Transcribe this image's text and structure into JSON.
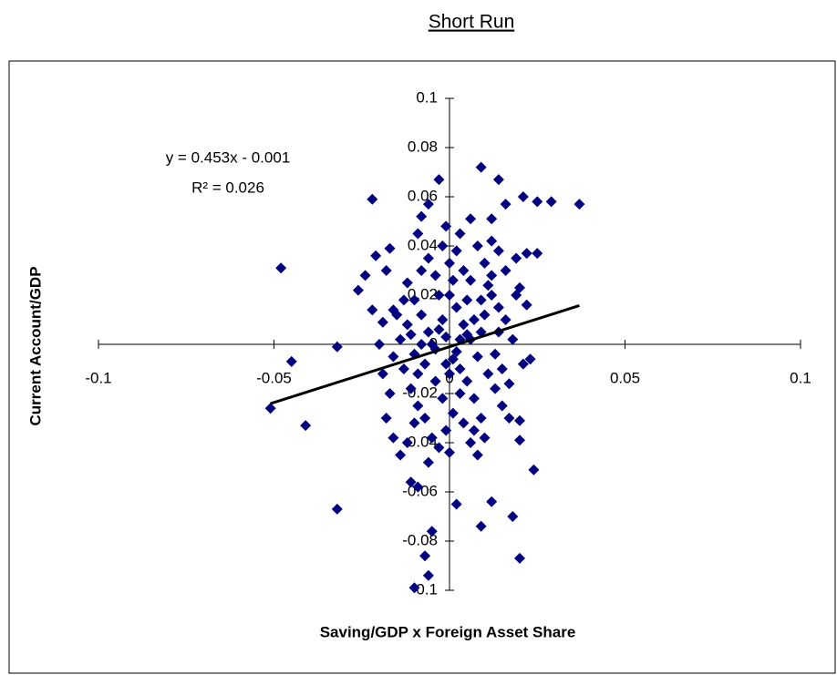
{
  "chart_data": {
    "type": "scatter",
    "title": "Short Run",
    "x_label": "Saving/GDP x Foreign Asset Share",
    "y_label": "Current Account/GDP",
    "annotations": [
      "y = 0.453x - 0.001",
      "R² = 0.026"
    ],
    "trendline": {
      "slope": 0.453,
      "intercept": -0.001,
      "x_range": [
        -0.051,
        0.037
      ]
    },
    "color": "#000080",
    "trendline_color": "#000000",
    "xlim": [
      -0.1,
      0.1
    ],
    "ylim": [
      -0.1,
      0.1
    ],
    "xticks": [
      -0.1,
      -0.05,
      0,
      0.05,
      0.1
    ],
    "yticks": [
      -0.1,
      -0.08,
      -0.06,
      -0.04,
      -0.02,
      0,
      0.02,
      0.04,
      0.06,
      0.08,
      0.1
    ],
    "x": [
      -0.048,
      -0.045,
      -0.051,
      -0.041,
      -0.032,
      -0.032,
      -0.022,
      -0.021,
      -0.026,
      -0.024,
      -0.017,
      -0.018,
      -0.016,
      -0.019,
      -0.022,
      0.009,
      0.014,
      0.021,
      0.025,
      0.029,
      0.037,
      0.012,
      0.006,
      0.016,
      -0.003,
      -0.006,
      -0.008,
      0.025,
      0.022,
      0.019,
      0.014,
      0.02,
      0.022,
      0.023,
      0.021,
      0.024,
      0.02,
      0.018,
      0.02,
      0.012,
      0.009,
      0.002,
      -0.005,
      -0.007,
      -0.006,
      -0.01,
      -0.011,
      -0.009,
      -0.012,
      -0.01,
      -0.008,
      -0.006,
      -0.004,
      -0.002,
      0.0,
      0.002,
      0.004,
      0.006,
      0.008,
      0.01,
      0.012,
      0.014,
      -0.013,
      -0.011,
      -0.009,
      -0.007,
      -0.005,
      -0.003,
      -0.001,
      0.001,
      0.003,
      0.005,
      0.007,
      0.009,
      0.011,
      0.013,
      0.015,
      -0.014,
      -0.012,
      -0.01,
      -0.008,
      -0.006,
      -0.004,
      -0.002,
      0.0,
      0.002,
      0.004,
      0.006,
      0.008,
      0.01,
      0.012,
      0.014,
      0.016,
      0.018,
      -0.016,
      -0.015,
      -0.013,
      -0.011,
      -0.009,
      -0.007,
      -0.005,
      -0.003,
      -0.001,
      0.001,
      0.003,
      0.005,
      0.007,
      0.009,
      0.011,
      0.013,
      0.015,
      0.017,
      -0.004,
      -0.002,
      0.0,
      0.002,
      0.004,
      0.006,
      0.008,
      0.01,
      -0.01,
      -0.012,
      -0.014,
      -0.006,
      0.0,
      0.003,
      -0.001,
      -0.009,
      0.012,
      0.016,
      0.019,
      0.017,
      0.02,
      -0.017,
      -0.019,
      -0.02,
      -0.018,
      -0.016,
      0.001,
      -0.003,
      0.005,
      0.003,
      -0.001,
      0.007,
      -0.008,
      0.009
    ],
    "values": [
      0.031,
      -0.007,
      -0.026,
      -0.033,
      -0.001,
      -0.067,
      0.059,
      0.036,
      0.022,
      0.028,
      0.039,
      0.03,
      0.014,
      0.009,
      0.014,
      0.072,
      0.067,
      0.06,
      0.058,
      0.058,
      0.057,
      0.051,
      0.051,
      0.057,
      0.067,
      0.057,
      0.052,
      0.037,
      0.037,
      0.035,
      0.038,
      0.023,
      0.016,
      -0.006,
      -0.008,
      -0.051,
      -0.039,
      -0.07,
      -0.087,
      -0.064,
      -0.074,
      -0.065,
      -0.076,
      -0.086,
      -0.094,
      -0.099,
      -0.056,
      -0.058,
      0.025,
      0.018,
      0.012,
      0.005,
      -0.002,
      0.01,
      0.02,
      0.015,
      0.008,
      0.002,
      -0.005,
      0.012,
      0.02,
      0.005,
      -0.01,
      -0.018,
      -0.025,
      -0.03,
      -0.038,
      -0.042,
      -0.035,
      -0.028,
      -0.02,
      -0.015,
      -0.022,
      -0.03,
      -0.012,
      -0.018,
      -0.025,
      0.002,
      0.008,
      -0.004,
      0.03,
      0.035,
      0.028,
      0.04,
      0.033,
      0.038,
      0.03,
      0.026,
      0.04,
      0.033,
      0.028,
      0.015,
      0.01,
      0.002,
      -0.005,
      0.012,
      0.018,
      0.004,
      -0.012,
      -0.008,
      0.0,
      0.006,
      0.003,
      -0.006,
      -0.01,
      0.004,
      0.01,
      0.018,
      0.024,
      -0.004,
      -0.01,
      -0.016,
      -0.015,
      -0.022,
      -0.012,
      -0.003,
      -0.032,
      -0.04,
      -0.045,
      -0.038,
      -0.032,
      -0.04,
      -0.045,
      -0.048,
      -0.044,
      0.045,
      0.048,
      0.045,
      0.042,
      0.03,
      0.02,
      -0.03,
      -0.031,
      -0.02,
      -0.012,
      0.0,
      -0.03,
      -0.038,
      0.026,
      0.02,
      0.018,
      0.002,
      -0.008,
      -0.035,
      0.0,
      0.005
    ]
  }
}
